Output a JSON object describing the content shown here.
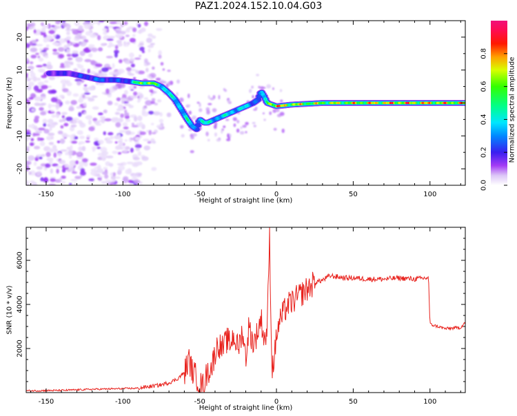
{
  "figure": {
    "title": "PAZ1.2024.152.10.04.G03"
  },
  "colors": {
    "snr_line": "#e8211c",
    "background": "#ffffff",
    "axes": "#000000"
  },
  "chart_data": [
    {
      "type": "heatmap",
      "xlabel": "Height of straight line (km)",
      "ylabel": "Frequency (Hz)",
      "xlim": [
        -163,
        123
      ],
      "ylim": [
        -25,
        25
      ],
      "xticks": [
        -150,
        -100,
        -50,
        0,
        50,
        100
      ],
      "yticks": [
        -20,
        -10,
        0,
        10,
        20
      ],
      "colormap": "gist_ncar_r-like (white/violet low → blue → cyan → green → yellow → orange → red → magenta high)",
      "colorbar": {
        "label": "Normalized spectral amplitude",
        "range": [
          0,
          1
        ],
        "ticks": [
          0.0,
          0.2,
          0.4,
          0.6,
          0.8
        ]
      },
      "ridge": {
        "description": "dominant spectral line (frequency vs height)",
        "height_km": [
          -148,
          -135,
          -125,
          -115,
          -105,
          -95,
          -88,
          -80,
          -75,
          -70,
          -66,
          -62,
          -58,
          -55,
          -52,
          -50,
          -47,
          -45,
          -40,
          -35,
          -30,
          -25,
          -20,
          -15,
          -12,
          -10,
          -8,
          -6,
          -3,
          0,
          10,
          30,
          50,
          80,
          100,
          123
        ],
        "frequency_hz": [
          9,
          9,
          8,
          7,
          7,
          6.5,
          6,
          6,
          5,
          3,
          1,
          -2,
          -5,
          -7,
          -8,
          -5,
          -6,
          -6,
          -5,
          -4,
          -3,
          -2,
          -1,
          0,
          1,
          3.5,
          2,
          0,
          -0.5,
          -1,
          -0.5,
          0,
          0,
          0,
          0,
          0
        ],
        "amplitude": [
          0.2,
          0.2,
          0.25,
          0.3,
          0.25,
          0.3,
          0.75,
          0.65,
          0.5,
          0.45,
          0.4,
          0.45,
          0.5,
          0.35,
          0.3,
          0.5,
          0.5,
          0.45,
          0.4,
          0.45,
          0.4,
          0.45,
          0.4,
          0.35,
          0.3,
          0.35,
          0.3,
          0.8,
          0.85,
          0.85,
          0.75,
          0.7,
          0.75,
          0.85,
          0.8,
          0.8
        ]
      },
      "noise_region_km": [
        -163,
        -85
      ]
    },
    {
      "type": "line",
      "xlabel": "Height of straight line (km)",
      "ylabel": "SNR (10 * v/v)",
      "xlim": [
        -163,
        123
      ],
      "ylim": [
        0,
        7500
      ],
      "xticks": [
        -150,
        -100,
        -50,
        0,
        50,
        100
      ],
      "yticks": [
        2000,
        4000,
        6000
      ],
      "series": [
        {
          "x": [
            -163,
            -140,
            -120,
            -100,
            -90,
            -80,
            -75,
            -70,
            -65,
            -60,
            -57,
            -55,
            -52,
            -50,
            -48,
            -45,
            -42,
            -40,
            -38,
            -35,
            -32,
            -30,
            -28,
            -25,
            -22,
            -20,
            -18,
            -15,
            -12,
            -10,
            -8,
            -6,
            -4.5,
            -3,
            -1,
            0,
            2,
            5,
            8,
            10,
            15,
            20,
            25,
            30,
            35,
            40,
            45,
            50,
            60,
            70,
            80,
            90,
            98,
            99,
            100,
            110,
            120,
            123
          ],
          "y": [
            80,
            100,
            150,
            180,
            200,
            300,
            350,
            450,
            600,
            900,
            1500,
            1000,
            700,
            400,
            300,
            900,
            1200,
            1800,
            2200,
            2000,
            2400,
            2200,
            2600,
            2000,
            2800,
            1500,
            3000,
            2200,
            2800,
            3400,
            2400,
            2800,
            7400,
            1000,
            1800,
            2600,
            3200,
            3700,
            4000,
            4100,
            4400,
            4700,
            5000,
            5100,
            5300,
            5250,
            5200,
            5200,
            5150,
            5150,
            5200,
            5150,
            5200,
            5250,
            3100,
            2900,
            2950,
            3200
          ]
        }
      ]
    }
  ]
}
